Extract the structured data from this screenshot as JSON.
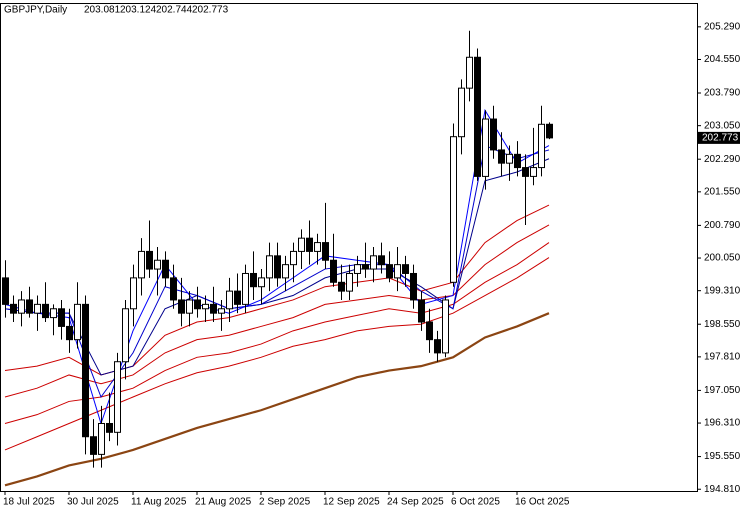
{
  "chart_data": {
    "type": "candlestick",
    "title": "GBPJPY,Daily",
    "ylim": [
      194.77,
      205.83
    ],
    "yticks": [
      {
        "value": 194.81,
        "label": "194.810"
      },
      {
        "value": 195.55,
        "label": "195.550"
      },
      {
        "value": 196.31,
        "label": "196.310"
      },
      {
        "value": 197.05,
        "label": "197.050"
      },
      {
        "value": 197.81,
        "label": "197.810"
      },
      {
        "value": 198.55,
        "label": "198.550"
      },
      {
        "value": 199.31,
        "label": "199.310"
      },
      {
        "value": 200.05,
        "label": "200.050"
      },
      {
        "value": 200.79,
        "label": "200.790"
      },
      {
        "value": 201.55,
        "label": "201.550"
      },
      {
        "value": 202.29,
        "label": "202.290"
      },
      {
        "value": 203.05,
        "label": "203.050"
      },
      {
        "value": 203.79,
        "label": "203.790"
      },
      {
        "value": 204.55,
        "label": "204.550"
      },
      {
        "value": 205.29,
        "label": "205.290"
      }
    ],
    "xticks": [
      {
        "value": 0,
        "label": "18 Jul 2025"
      },
      {
        "value": 8,
        "label": "30 Jul 2025"
      },
      {
        "value": 16,
        "label": "11 Aug 2025"
      },
      {
        "value": 24,
        "label": "21 Aug 2025"
      },
      {
        "value": 32,
        "label": "2 Sep 2025"
      },
      {
        "value": 40,
        "label": "12 Sep 2025"
      },
      {
        "value": 48,
        "label": "24 Sep 2025"
      },
      {
        "value": 56,
        "label": "6 Oct 2025"
      },
      {
        "value": 64,
        "label": "16 Oct 2025"
      }
    ],
    "up_color": "#ffffff",
    "down_color": "#000000",
    "open": [
      199.6,
      199.0,
      198.8,
      199.1,
      198.8,
      199.0,
      198.7,
      198.9,
      198.5,
      198.2,
      199.0,
      196.0,
      195.6,
      196.3,
      196.1,
      197.7,
      198.9,
      199.6,
      200.2,
      199.8,
      200.0,
      199.6,
      199.1,
      198.8,
      199.1,
      198.9,
      199.0,
      198.8,
      198.9,
      199.3,
      199.0,
      199.7,
      199.4,
      199.6,
      200.1,
      199.6,
      199.9,
      200.2,
      200.5,
      200.2,
      200.4,
      200.0,
      199.5,
      199.3,
      199.7,
      199.9,
      199.8,
      200.1,
      199.9,
      199.6,
      199.9,
      199.7,
      199.1,
      198.6,
      198.2,
      197.9,
      199.5,
      202.8,
      203.9,
      204.6,
      201.9,
      203.2,
      202.5,
      202.2,
      202.4,
      202.1,
      201.9,
      202.1,
      203.081
    ],
    "high": [
      200.0,
      199.2,
      199.3,
      199.4,
      199.2,
      199.5,
      199.0,
      199.1,
      198.9,
      199.5,
      199.2,
      196.4,
      196.7,
      197.0,
      197.9,
      199.1,
      199.9,
      200.5,
      200.9,
      200.3,
      200.2,
      199.9,
      199.6,
      199.3,
      199.4,
      199.2,
      199.4,
      199.1,
      199.6,
      199.7,
      199.9,
      200.2,
      199.8,
      200.4,
      200.4,
      200.1,
      200.4,
      200.7,
      200.9,
      200.6,
      201.3,
      200.6,
      199.9,
      199.9,
      200.1,
      200.4,
      200.3,
      200.4,
      200.2,
      200.3,
      200.1,
      199.9,
      199.3,
      198.9,
      198.4,
      199.2,
      203.1,
      204.1,
      205.2,
      204.8,
      203.4,
      203.5,
      202.9,
      202.6,
      202.7,
      202.4,
      203.0,
      203.5,
      203.124
    ],
    "low": [
      198.7,
      198.6,
      198.5,
      198.7,
      198.4,
      198.6,
      198.3,
      198.2,
      197.9,
      198.0,
      195.6,
      195.3,
      195.3,
      195.9,
      195.8,
      197.3,
      198.5,
      199.2,
      199.6,
      199.2,
      199.4,
      198.9,
      198.5,
      198.5,
      198.7,
      198.6,
      198.6,
      198.4,
      198.6,
      198.8,
      198.8,
      199.1,
      199.0,
      199.3,
      199.4,
      199.3,
      199.5,
      199.8,
      199.9,
      199.9,
      199.8,
      199.4,
      199.1,
      199.1,
      199.4,
      199.6,
      199.5,
      199.7,
      199.5,
      199.3,
      199.4,
      198.9,
      198.4,
      197.9,
      197.7,
      197.8,
      199.4,
      202.4,
      203.6,
      201.8,
      201.6,
      202.3,
      201.9,
      201.8,
      201.9,
      200.8,
      201.7,
      201.9,
      202.744
    ],
    "close": [
      199.0,
      198.8,
      199.1,
      198.8,
      199.0,
      198.7,
      198.9,
      198.5,
      198.2,
      199.0,
      196.0,
      195.6,
      196.3,
      196.1,
      197.7,
      198.9,
      199.6,
      200.2,
      199.8,
      200.0,
      199.6,
      199.1,
      198.8,
      199.1,
      198.9,
      199.0,
      198.8,
      198.9,
      199.3,
      199.0,
      199.7,
      199.4,
      199.6,
      200.1,
      199.6,
      199.9,
      200.2,
      200.5,
      200.2,
      200.4,
      200.0,
      199.5,
      199.3,
      199.7,
      199.9,
      199.8,
      200.1,
      199.9,
      199.6,
      199.9,
      199.7,
      199.1,
      198.6,
      198.2,
      197.9,
      199.1,
      202.8,
      203.9,
      204.6,
      201.9,
      203.2,
      202.5,
      202.2,
      202.4,
      202.1,
      201.9,
      202.1,
      203.081,
      202.773
    ],
    "line_x": [
      0,
      4,
      8,
      12,
      16,
      20,
      24,
      28,
      32,
      36,
      40,
      44,
      48,
      52,
      56,
      60,
      64,
      68
    ],
    "indicators": [
      {
        "color": "#8b4513",
        "values": [
          194.9,
          195.1,
          195.35,
          195.5,
          195.7,
          195.95,
          196.2,
          196.4,
          196.6,
          196.85,
          197.1,
          197.35,
          197.5,
          197.6,
          197.8,
          198.25,
          198.5,
          198.8
        ]
      },
      {
        "color": "#cc0000",
        "values": [
          195.7,
          196.0,
          196.3,
          196.6,
          196.9,
          197.2,
          197.45,
          197.6,
          197.8,
          198.05,
          198.2,
          198.4,
          198.5,
          198.55,
          198.8,
          199.2,
          199.6,
          200.06
        ]
      },
      {
        "color": "#cc0000",
        "values": [
          196.3,
          196.5,
          196.8,
          196.9,
          197.1,
          197.5,
          197.8,
          197.9,
          198.1,
          198.4,
          198.6,
          198.75,
          198.9,
          198.8,
          199.0,
          199.5,
          199.9,
          200.4
        ]
      },
      {
        "color": "#cc0000",
        "values": [
          196.9,
          197.1,
          197.4,
          197.2,
          197.4,
          197.9,
          198.2,
          198.3,
          198.5,
          198.7,
          199.0,
          199.1,
          199.2,
          199.1,
          199.2,
          199.9,
          200.4,
          200.8
        ]
      },
      {
        "color": "#cc0000",
        "values": [
          197.5,
          197.6,
          197.8,
          197.4,
          197.6,
          198.3,
          198.6,
          198.7,
          198.9,
          199.1,
          199.4,
          199.5,
          199.6,
          199.3,
          199.5,
          200.4,
          200.9,
          201.25
        ]
      },
      {
        "color": "#00008b",
        "values": [
          198.9,
          198.8,
          198.8,
          197.4,
          197.6,
          198.9,
          199.2,
          198.9,
          199.0,
          199.2,
          199.6,
          199.8,
          199.8,
          199.4,
          198.9,
          201.8,
          202.0,
          202.3
        ]
      },
      {
        "color": "#0000cd",
        "values": [
          198.9,
          198.8,
          198.8,
          196.9,
          197.9,
          199.4,
          199.2,
          198.9,
          199.0,
          199.4,
          199.8,
          199.9,
          199.9,
          199.3,
          198.9,
          202.6,
          202.3,
          202.5
        ]
      },
      {
        "color": "#0000ff",
        "values": [
          199.0,
          198.8,
          198.7,
          196.3,
          198.4,
          199.9,
          199.0,
          198.8,
          199.1,
          199.6,
          200.1,
          200.0,
          199.9,
          199.0,
          199.2,
          203.4,
          202.2,
          202.6
        ]
      }
    ]
  }
}
